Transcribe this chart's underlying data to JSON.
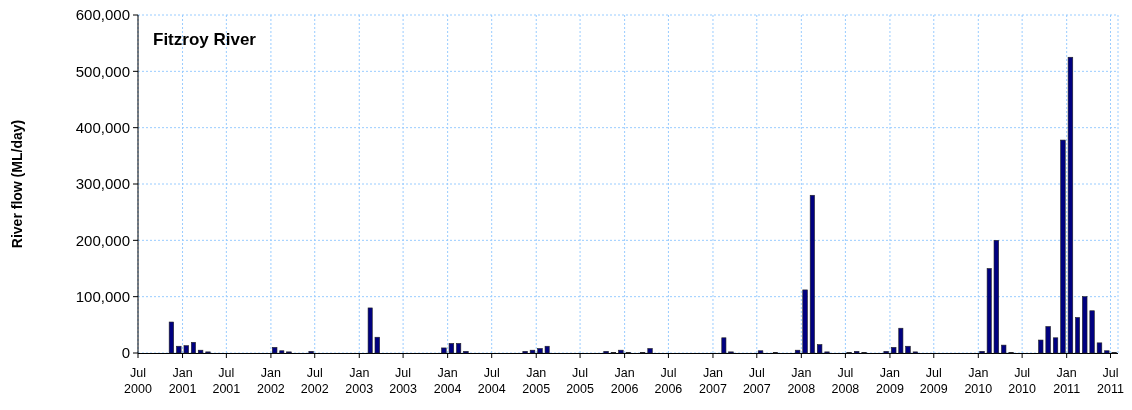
{
  "chart_data": {
    "type": "bar",
    "title": "Fitzroy River",
    "ylabel": "River flow (ML/day)",
    "x": [
      "2000-07",
      "2000-08",
      "2000-09",
      "2000-10",
      "2000-11",
      "2000-12",
      "2001-01",
      "2001-02",
      "2001-03",
      "2001-04",
      "2001-05",
      "2001-06",
      "2001-07",
      "2001-08",
      "2001-09",
      "2001-10",
      "2001-11",
      "2001-12",
      "2002-01",
      "2002-02",
      "2002-03",
      "2002-04",
      "2002-05",
      "2002-06",
      "2002-07",
      "2002-08",
      "2002-09",
      "2002-10",
      "2002-11",
      "2002-12",
      "2003-01",
      "2003-02",
      "2003-03",
      "2003-04",
      "2003-05",
      "2003-06",
      "2003-07",
      "2003-08",
      "2003-09",
      "2003-10",
      "2003-11",
      "2003-12",
      "2004-01",
      "2004-02",
      "2004-03",
      "2004-04",
      "2004-05",
      "2004-06",
      "2004-07",
      "2004-08",
      "2004-09",
      "2004-10",
      "2004-11",
      "2004-12",
      "2005-01",
      "2005-02",
      "2005-03",
      "2005-04",
      "2005-05",
      "2005-06",
      "2005-07",
      "2005-08",
      "2005-09",
      "2005-10",
      "2005-11",
      "2005-12",
      "2006-01",
      "2006-02",
      "2006-03",
      "2006-04",
      "2006-05",
      "2006-06",
      "2006-07",
      "2006-08",
      "2006-09",
      "2006-10",
      "2006-11",
      "2006-12",
      "2007-01",
      "2007-02",
      "2007-03",
      "2007-04",
      "2007-05",
      "2007-06",
      "2007-07",
      "2007-08",
      "2007-09",
      "2007-10",
      "2007-11",
      "2007-12",
      "2008-01",
      "2008-02",
      "2008-03",
      "2008-04",
      "2008-05",
      "2008-06",
      "2008-07",
      "2008-08",
      "2008-09",
      "2008-10",
      "2008-11",
      "2008-12",
      "2009-01",
      "2009-02",
      "2009-03",
      "2009-04",
      "2009-05",
      "2009-06",
      "2009-07",
      "2009-08",
      "2009-09",
      "2009-10",
      "2009-11",
      "2009-12",
      "2010-01",
      "2010-02",
      "2010-03",
      "2010-04",
      "2010-05",
      "2010-06",
      "2010-07",
      "2010-08",
      "2010-09",
      "2010-10",
      "2010-11",
      "2010-12",
      "2011-01",
      "2011-02",
      "2011-03",
      "2011-04",
      "2011-05",
      "2011-06",
      "2011-07"
    ],
    "values": [
      0,
      0,
      0,
      0,
      55000,
      12000,
      13000,
      19000,
      5000,
      2000,
      0,
      0,
      0,
      0,
      0,
      0,
      0,
      0,
      10000,
      4000,
      2000,
      0,
      0,
      3000,
      0,
      0,
      0,
      0,
      0,
      0,
      0,
      80000,
      28000,
      0,
      0,
      0,
      0,
      0,
      0,
      0,
      0,
      9000,
      17000,
      17000,
      3000,
      0,
      0,
      0,
      0,
      0,
      0,
      0,
      3000,
      5000,
      8000,
      12000,
      0,
      0,
      0,
      0,
      0,
      0,
      0,
      3000,
      1000,
      5000,
      1000,
      0,
      1000,
      8000,
      0,
      0,
      0,
      0,
      0,
      0,
      0,
      0,
      0,
      27000,
      2000,
      0,
      0,
      0,
      4000,
      0,
      1000,
      0,
      0,
      5000,
      112000,
      280000,
      15000,
      2000,
      0,
      0,
      1000,
      3000,
      1000,
      0,
      0,
      3000,
      10000,
      44000,
      12000,
      2000,
      0,
      0,
      0,
      0,
      0,
      0,
      0,
      0,
      3000,
      150000,
      200000,
      14000,
      1000,
      0,
      0,
      0,
      23000,
      47000,
      27000,
      378000,
      525000,
      63000,
      100000,
      75000,
      18000,
      4000,
      1000
    ],
    "color": "#000080",
    "xlim": [
      "2000-07",
      "2011-08"
    ],
    "xticks": [
      {
        "value": "2000-07",
        "label": "Jul 2000"
      },
      {
        "value": "2001-01",
        "label": "Jan 2001"
      },
      {
        "value": "2001-07",
        "label": "Jul 2001"
      },
      {
        "value": "2002-01",
        "label": "Jan 2002"
      },
      {
        "value": "2002-07",
        "label": "Jul 2002"
      },
      {
        "value": "2003-01",
        "label": "Jan 2003"
      },
      {
        "value": "2003-07",
        "label": "Jul 2003"
      },
      {
        "value": "2004-01",
        "label": "Jan 2004"
      },
      {
        "value": "2004-07",
        "label": "Jul 2004"
      },
      {
        "value": "2005-01",
        "label": "Jan 2005"
      },
      {
        "value": "2005-07",
        "label": "Jul 2005"
      },
      {
        "value": "2006-01",
        "label": "Jan 2006"
      },
      {
        "value": "2006-07",
        "label": "Jul 2006"
      },
      {
        "value": "2007-01",
        "label": "Jan 2007"
      },
      {
        "value": "2007-07",
        "label": "Jul 2007"
      },
      {
        "value": "2008-01",
        "label": "Jan 2008"
      },
      {
        "value": "2008-07",
        "label": "Jul 2008"
      },
      {
        "value": "2009-01",
        "label": "Jan 2009"
      },
      {
        "value": "2009-07",
        "label": "Jul 2009"
      },
      {
        "value": "2010-01",
        "label": "Jan 2010"
      },
      {
        "value": "2010-07",
        "label": "Jul 2010"
      },
      {
        "value": "2011-01",
        "label": "Jan 2011"
      },
      {
        "value": "2011-07",
        "label": "Jul 2011"
      }
    ],
    "ylim": [
      0,
      600000
    ],
    "yticks": [
      {
        "value": 0,
        "label": "0"
      },
      {
        "value": 100000,
        "label": "100,000"
      },
      {
        "value": 200000,
        "label": "200,000"
      },
      {
        "value": 300000,
        "label": "300,000"
      },
      {
        "value": 400000,
        "label": "400,000"
      },
      {
        "value": 500000,
        "label": "500,000"
      },
      {
        "value": 600000,
        "label": "600,000"
      }
    ],
    "grid": true
  }
}
